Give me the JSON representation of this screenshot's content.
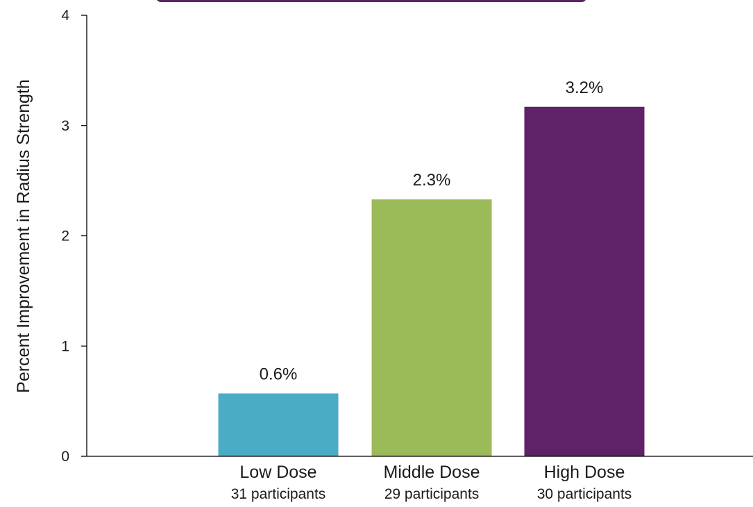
{
  "chart_data": {
    "type": "bar",
    "ylabel": "Percent Improvement in Radius Strength",
    "xlabel": "",
    "ylim": [
      0,
      4
    ],
    "yticks": [
      0,
      1,
      2,
      3,
      4
    ],
    "grid": false,
    "categories": [
      "Low Dose",
      "Middle Dose",
      "High Dose"
    ],
    "category_subtitles": [
      "31 participants",
      "29 participants",
      "30 participants"
    ],
    "values": [
      0.57,
      2.33,
      3.17
    ],
    "data_labels": [
      "0.6%",
      "2.3%",
      "3.2%"
    ],
    "bar_colors": [
      "#4bacc6",
      "#9bbb59",
      "#5f2167"
    ],
    "axis_color": "#000000",
    "top_banner_color": "#5f2167"
  }
}
